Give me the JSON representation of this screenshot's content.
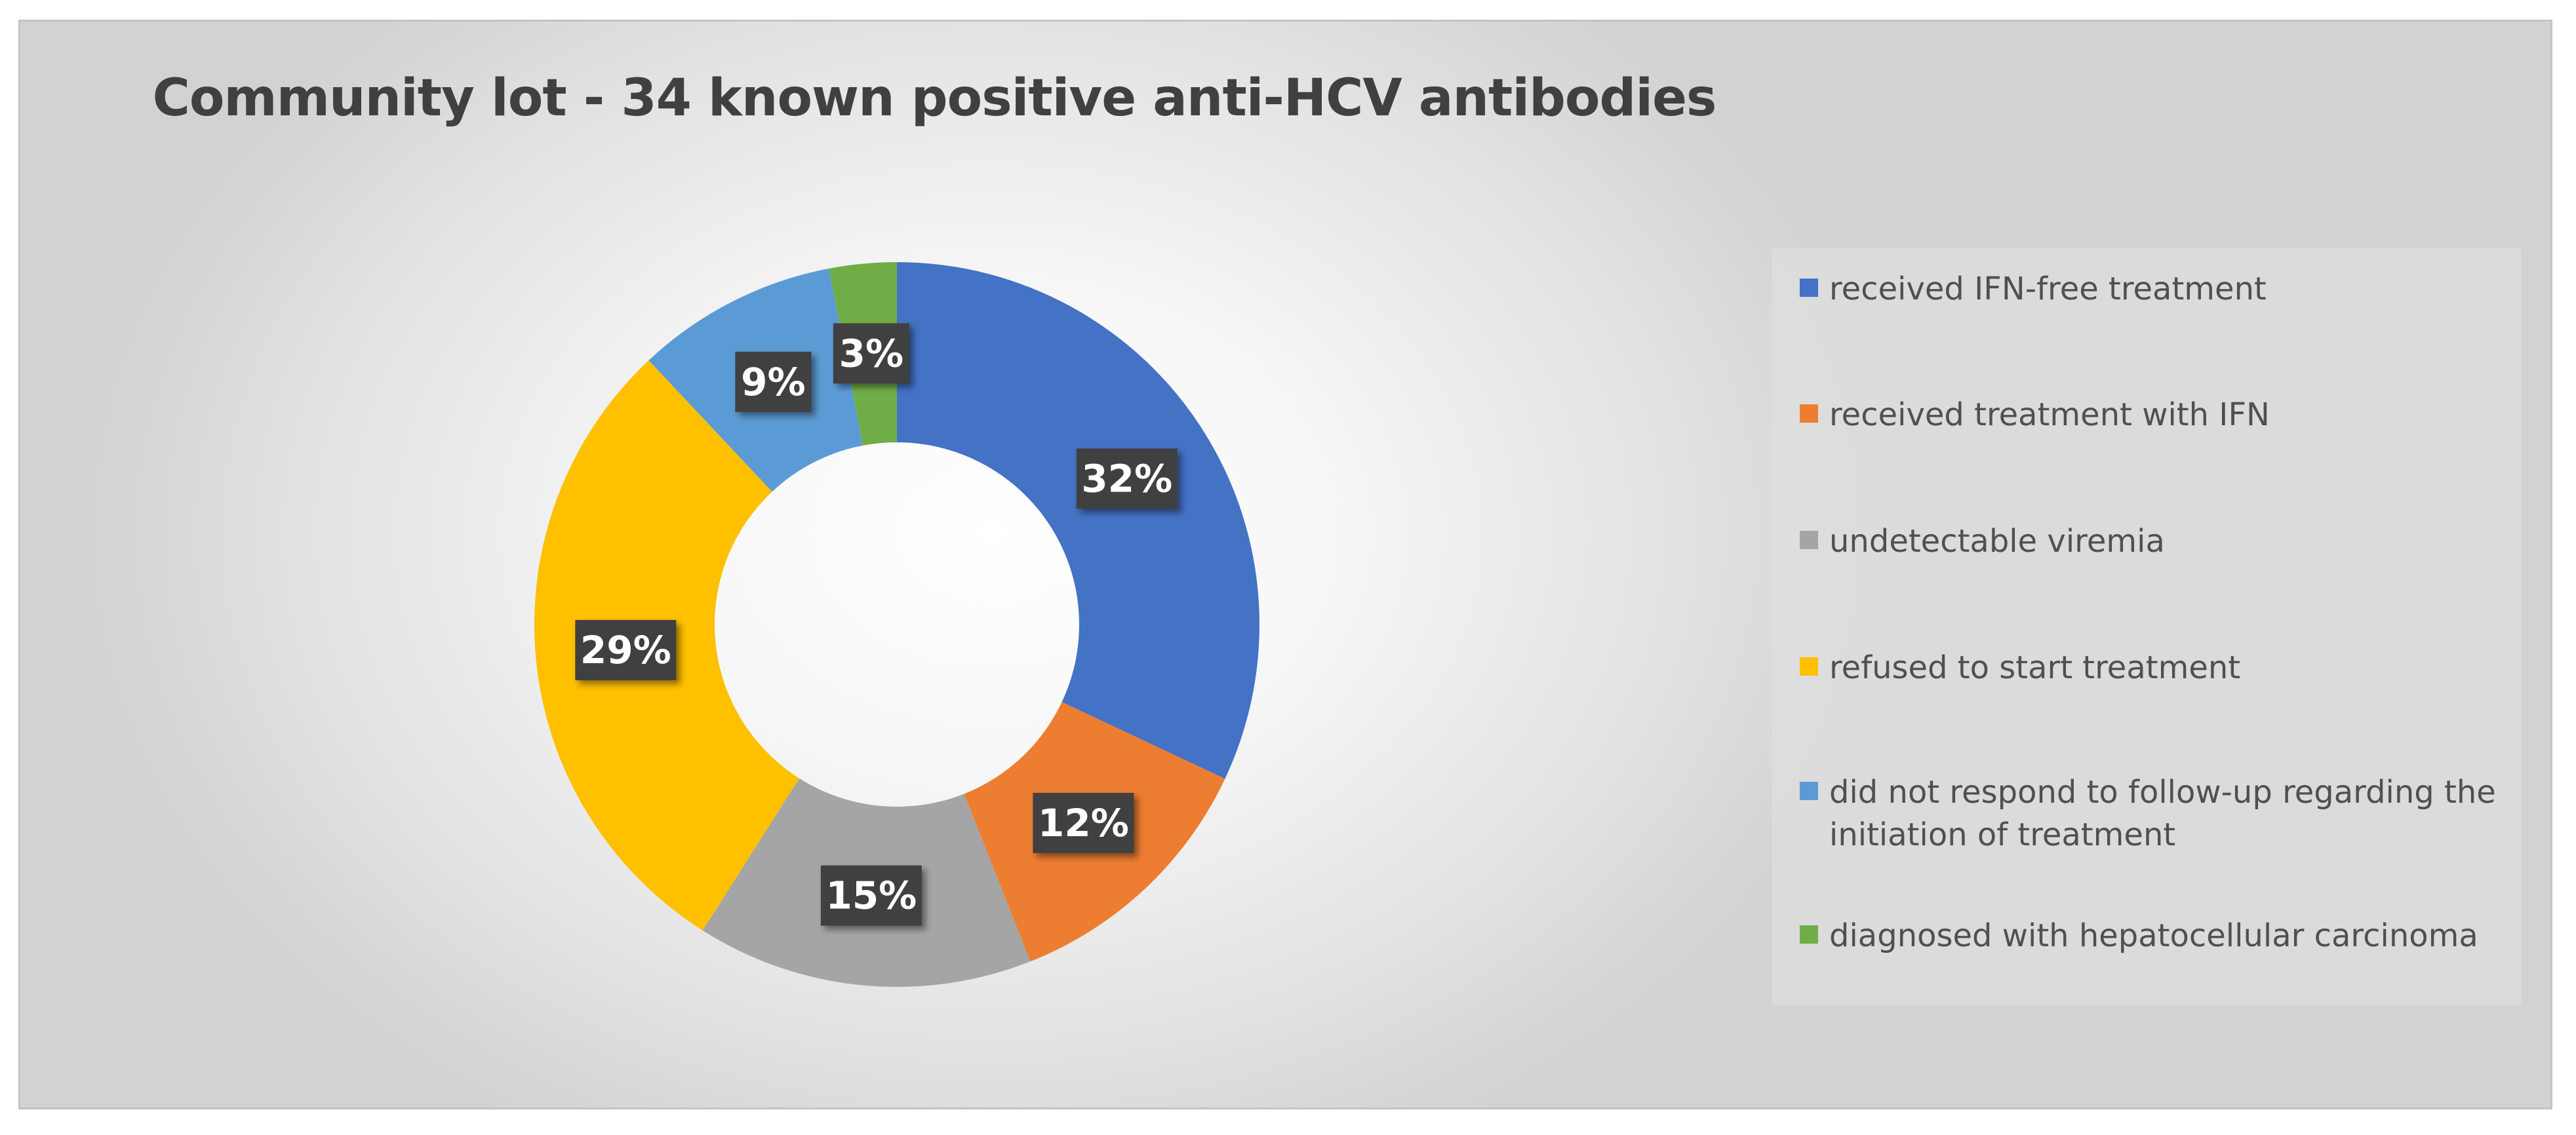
{
  "chart_data": {
    "type": "pie",
    "title": "Community lot - 34 known positive anti-HCV antibodies",
    "labels": [
      "received IFN-free treatment",
      "received treatment with IFN",
      "undetectable viremia",
      "refused to start treatment",
      "did not respond to follow-up regarding the initiation of treatment",
      "diagnosed with hepatocellular carcinoma"
    ],
    "values": [
      32,
      12,
      15,
      29,
      9,
      3
    ],
    "data_labels": [
      "32%",
      "12%",
      "15%",
      "29%",
      "9%",
      "3%"
    ],
    "colors": [
      "#4472C4",
      "#ED7D31",
      "#A5A5A5",
      "#FFC000",
      "#5B9BD5",
      "#70AD47"
    ],
    "style": "doughnut",
    "legend": "right"
  }
}
